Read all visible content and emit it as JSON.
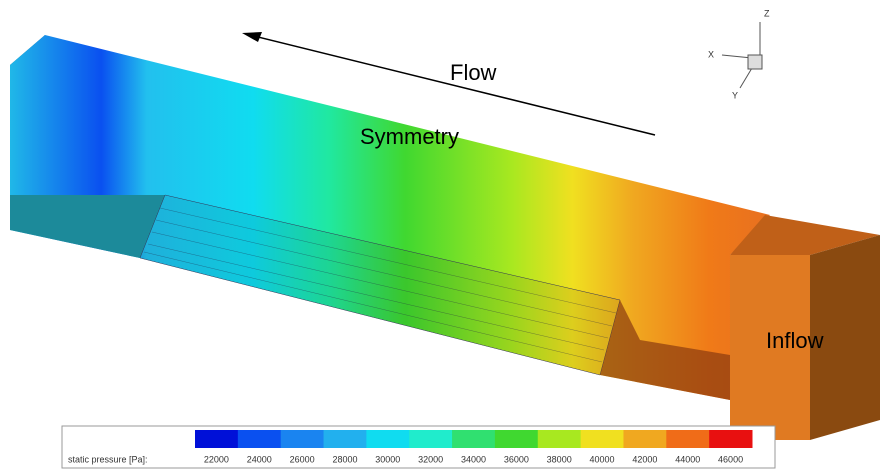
{
  "annotations": {
    "flow": "Flow",
    "symmetry": "Symmetry",
    "inflow": "Inflow"
  },
  "axis_triad": {
    "x": "X",
    "y": "Y",
    "z": "Z"
  },
  "colorbar": {
    "label": "static pressure [Pa]:",
    "ticks": [
      22000,
      24000,
      26000,
      28000,
      30000,
      32000,
      34000,
      36000,
      38000,
      40000,
      42000,
      44000,
      46000
    ],
    "colors": [
      "#0010d8",
      "#0a50f0",
      "#1a84f0",
      "#22b0ee",
      "#10dcf0",
      "#20eccc",
      "#30e070",
      "#40d830",
      "#a8e820",
      "#f0e020",
      "#f0a820",
      "#f06c18",
      "#e81010"
    ]
  }
}
